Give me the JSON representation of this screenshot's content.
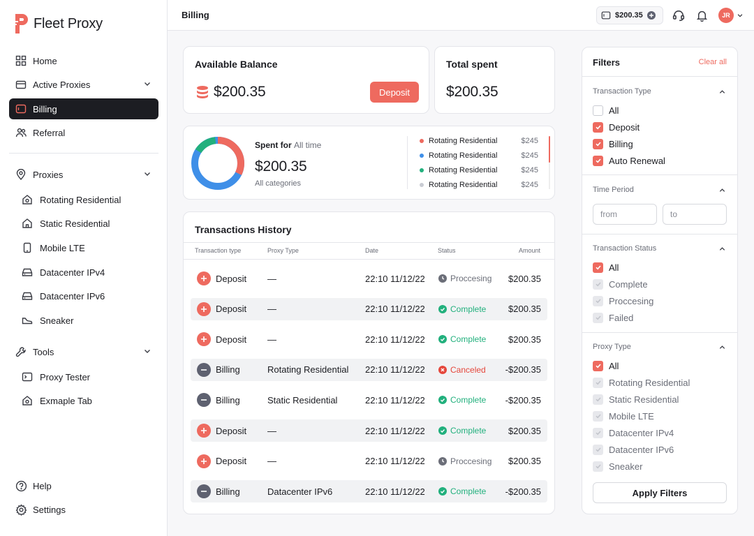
{
  "app": {
    "name": "Fleet Proxy"
  },
  "sidebar": {
    "home": "Home",
    "active_proxies": "Active Proxies",
    "billing": "Billing",
    "referral": "Referral",
    "proxies": "Proxies",
    "proxy_items": [
      "Rotating Residential",
      "Static Residential",
      "Mobile LTE",
      "Datacenter IPv4",
      "Datacenter IPv6",
      "Sneaker"
    ],
    "tools": "Tools",
    "tool_items": [
      "Proxy Tester",
      "Exmaple Tab"
    ],
    "help": "Help",
    "settings": "Settings"
  },
  "header": {
    "title": "Billing",
    "balance": "$200.35",
    "avatar_initials": "JR"
  },
  "balance_card": {
    "title": "Available Balance",
    "amount": "$200.35",
    "deposit_label": "Deposit"
  },
  "total_card": {
    "title": "Total spent",
    "amount": "$200.35"
  },
  "spent_card": {
    "label": "Spent for",
    "period": "All time",
    "amount": "$200.35",
    "sub": "All categories",
    "legend": [
      {
        "name": "Rotating Residential",
        "amount": "$245",
        "color": "#ee6a5f"
      },
      {
        "name": "Rotating Residential",
        "amount": "$245",
        "color": "#3f8fe8"
      },
      {
        "name": "Rotating Residential",
        "amount": "$245",
        "color": "#22b07d"
      },
      {
        "name": "Rotating Residential",
        "amount": "$245",
        "color": "#c9ccd3"
      }
    ]
  },
  "transactions": {
    "title": "Transactions History",
    "columns": {
      "type": "Transaction type",
      "proxy": "Proxy Type",
      "date": "Date",
      "status": "Status",
      "amount": "Amount"
    },
    "rows": [
      {
        "type": "Deposit",
        "proxy": "—",
        "date": "22:10 11/12/22",
        "status": "Proccesing",
        "amount": "$200.35"
      },
      {
        "type": "Deposit",
        "proxy": "—",
        "date": "22:10 11/12/22",
        "status": "Complete",
        "amount": "$200.35"
      },
      {
        "type": "Deposit",
        "proxy": "—",
        "date": "22:10 11/12/22",
        "status": "Complete",
        "amount": "$200.35"
      },
      {
        "type": "Billing",
        "proxy": "Rotating Residential",
        "date": "22:10 11/12/22",
        "status": "Canceled",
        "amount": "-$200.35"
      },
      {
        "type": "Billing",
        "proxy": "Static Residential",
        "date": "22:10 11/12/22",
        "status": "Complete",
        "amount": "-$200.35"
      },
      {
        "type": "Deposit",
        "proxy": "—",
        "date": "22:10 11/12/22",
        "status": "Complete",
        "amount": "$200.35"
      },
      {
        "type": "Deposit",
        "proxy": "—",
        "date": "22:10 11/12/22",
        "status": "Proccesing",
        "amount": "$200.35"
      },
      {
        "type": "Billing",
        "proxy": "Datacenter IPv6",
        "date": "22:10 11/12/22",
        "status": "Complete",
        "amount": "-$200.35"
      }
    ]
  },
  "filters": {
    "title": "Filters",
    "clear": "Clear all",
    "transaction_type": {
      "title": "Transaction Type",
      "options": [
        {
          "label": "All",
          "state": "off"
        },
        {
          "label": "Deposit",
          "state": "on"
        },
        {
          "label": "Billing",
          "state": "on"
        },
        {
          "label": "Auto Renewal",
          "state": "on"
        }
      ]
    },
    "time_period": {
      "title": "Time Period",
      "from": "from",
      "to": "to"
    },
    "transaction_status": {
      "title": "Transaction Status",
      "options": [
        {
          "label": "All",
          "state": "on"
        },
        {
          "label": "Complete",
          "state": "dis"
        },
        {
          "label": "Proccesing",
          "state": "dis"
        },
        {
          "label": "Failed",
          "state": "dis"
        }
      ]
    },
    "proxy_type": {
      "title": "Proxy Type",
      "options": [
        {
          "label": "All",
          "state": "on"
        },
        {
          "label": "Rotating Residential",
          "state": "dis"
        },
        {
          "label": "Static Residential",
          "state": "dis"
        },
        {
          "label": "Mobile LTE",
          "state": "dis"
        },
        {
          "label": "Datacenter IPv4",
          "state": "dis"
        },
        {
          "label": "Datacenter IPv6",
          "state": "dis"
        },
        {
          "label": "Sneaker",
          "state": "dis"
        }
      ]
    },
    "apply": "Apply Filters"
  },
  "colors": {
    "accent": "#ee6a5f",
    "dark": "#1c1d22",
    "complete": "#22b07d",
    "processing": "#6b6e78",
    "canceled": "#e5473c"
  }
}
